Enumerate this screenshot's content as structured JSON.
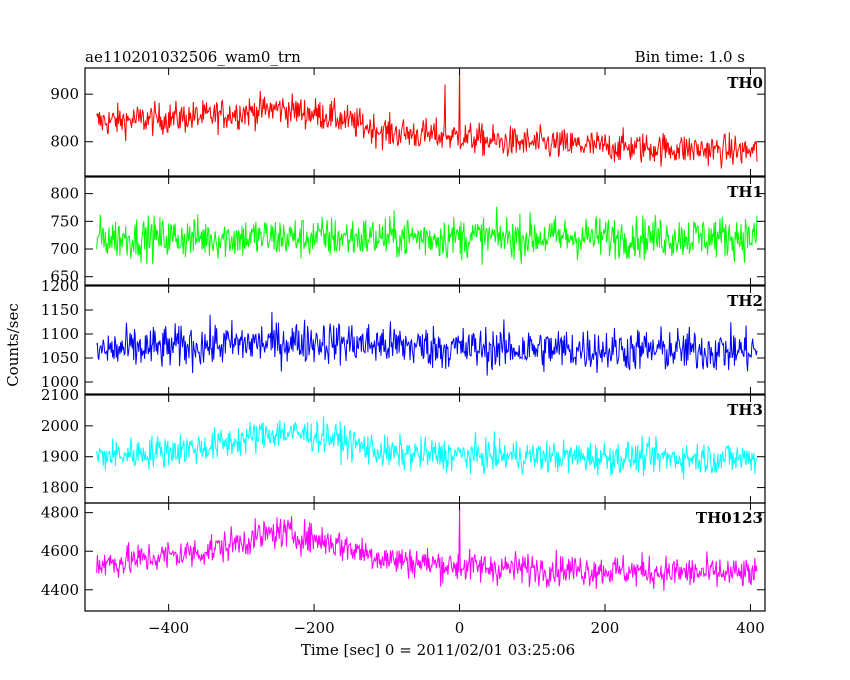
{
  "chart_data": {
    "type": "line",
    "title_left": "ae110201032506_wam0_trn",
    "title_right": "Bin time: 1.0 s",
    "xlabel": "Time [sec] 0 = 2011/02/01 03:25:06",
    "ylabel": "Counts/sec",
    "xlim": [
      -515,
      420
    ],
    "x_ticks": [
      -400,
      -200,
      0,
      200,
      400
    ],
    "x_tick_labels": [
      "−400",
      "−200",
      "0",
      "200",
      "400"
    ],
    "x_range": [
      -499,
      409
    ],
    "panels": [
      {
        "name": "TH0",
        "color": "#ff0000",
        "ylim": [
          728,
          955
        ],
        "y_ticks": [
          800,
          900
        ],
        "y_tick_labels": [
          "800",
          "900"
        ],
        "level": [
          [
            -500,
            842
          ],
          [
            -350,
            853
          ],
          [
            -250,
            870
          ],
          [
            -180,
            855
          ],
          [
            -100,
            820
          ],
          [
            0,
            810
          ],
          [
            50,
            800
          ],
          [
            200,
            790
          ],
          [
            409,
            780
          ]
        ],
        "noise": 28,
        "spikes": [
          [
            0,
            950
          ],
          [
            -20,
            920
          ]
        ]
      },
      {
        "name": "TH1",
        "color": "#00ff00",
        "ylim": [
          635,
          830
        ],
        "y_ticks": [
          650,
          700,
          750,
          800
        ],
        "y_tick_labels": [
          "650",
          "700",
          "750",
          "800"
        ],
        "level": [
          [
            -500,
            720
          ],
          [
            409,
            722
          ]
        ],
        "noise": 32,
        "spikes": []
      },
      {
        "name": "TH2",
        "color": "#0000ff",
        "ylim": [
          975,
          1200
        ],
        "y_ticks": [
          1000,
          1050,
          1100,
          1150,
          1200
        ],
        "y_tick_labels": [
          "1000",
          "1050",
          "1100",
          "1150",
          "1200"
        ],
        "level": [
          [
            -500,
            1065
          ],
          [
            -300,
            1080
          ],
          [
            -200,
            1085
          ],
          [
            0,
            1070
          ],
          [
            409,
            1065
          ]
        ],
        "noise": 38,
        "spikes": []
      },
      {
        "name": "TH3",
        "color": "#00ffff",
        "ylim": [
          1750,
          2100
        ],
        "y_ticks": [
          1800,
          1900,
          2000,
          2100
        ],
        "y_tick_labels": [
          "1800",
          "1900",
          "2000",
          "2100"
        ],
        "level": [
          [
            -500,
            1900
          ],
          [
            -350,
            1930
          ],
          [
            -250,
            1980
          ],
          [
            -180,
            1965
          ],
          [
            -100,
            1910
          ],
          [
            100,
            1900
          ],
          [
            409,
            1895
          ]
        ],
        "noise": 45,
        "spikes": []
      },
      {
        "name": "TH0123",
        "color": "#ff00ff",
        "ylim": [
          4290,
          4850
        ],
        "y_ticks": [
          4400,
          4600,
          4800
        ],
        "y_tick_labels": [
          "4400",
          "4600",
          "4800"
        ],
        "level": [
          [
            -500,
            4530
          ],
          [
            -350,
            4600
          ],
          [
            -250,
            4700
          ],
          [
            -180,
            4650
          ],
          [
            -100,
            4560
          ],
          [
            0,
            4520
          ],
          [
            409,
            4480
          ]
        ],
        "noise": 70,
        "spikes": [
          [
            0,
            4830
          ]
        ]
      }
    ]
  }
}
